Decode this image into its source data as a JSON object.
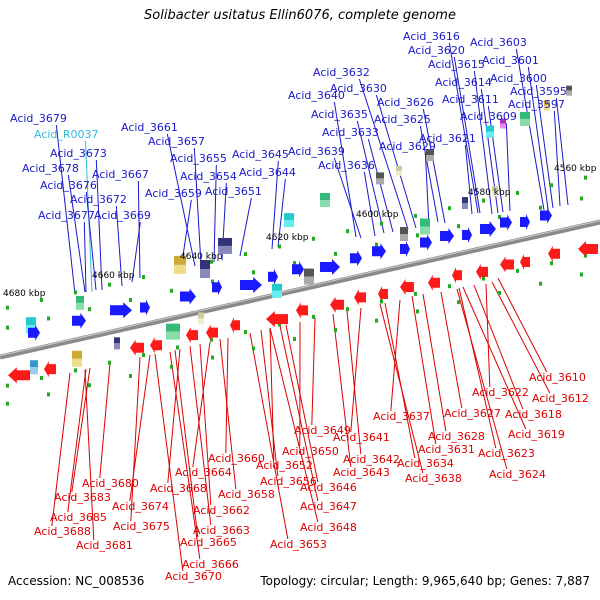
{
  "title": "Solibacter usitatus Ellin6076, complete genome",
  "footer": {
    "accession": "Accession: NC_008536",
    "summary": "Topology: circular; Length: 9,965,640 bp; Genes: 7,887"
  },
  "scale_labels": [
    "4560 kbp",
    "4580 kbp",
    "4600 kbp",
    "4620 kbp",
    "4640 kbp",
    "4660 kbp",
    "4680 kbp"
  ],
  "forward_labels": [
    "Acid_3616",
    "Acid_3603",
    "Acid_3620",
    "Acid_3601",
    "Acid_3615",
    "Acid_3600",
    "Acid_3614",
    "Acid_3595",
    "Acid_3611",
    "Acid_3597",
    "Acid_3609",
    "Acid_3632",
    "Acid_3630",
    "Acid_3640",
    "Acid_3626",
    "Acid_3635",
    "Acid_3625",
    "Acid_3633",
    "Acid_3629",
    "Acid_3621",
    "Acid_3639",
    "Acid_3636",
    "Acid_3645",
    "Acid_3644",
    "Acid_3661",
    "Acid_3657",
    "Acid_3655",
    "Acid_3654",
    "Acid_3651",
    "Acid_3659",
    "Acid_3679",
    "Acid_R0037",
    "Acid_3673",
    "Acid_3678",
    "Acid_3667",
    "Acid_3676",
    "Acid_3672",
    "Acid_3677",
    "Acid_3669"
  ],
  "reverse_labels": [
    "Acid_3610",
    "Acid_3622",
    "Acid_3612",
    "Acid_3618",
    "Acid_3619",
    "Acid_3627",
    "Acid_3637",
    "Acid_3628",
    "Acid_3631",
    "Acid_3623",
    "Acid_3641",
    "Acid_3649",
    "Acid_3624",
    "Acid_3634",
    "Acid_3642",
    "Acid_3650",
    "Acid_3660",
    "Acid_3643",
    "Acid_3638",
    "Acid_3664",
    "Acid_3652",
    "Acid_3646",
    "Acid_3668",
    "Acid_3656",
    "Acid_3658",
    "Acid_3680",
    "Acid_3647",
    "Acid_3662",
    "Acid_3683",
    "Acid_3674",
    "Acid_3648",
    "Acid_3685",
    "Acid_3663",
    "Acid_3675",
    "Acid_3688",
    "Acid_3665",
    "Acid_3653",
    "Acid_3681",
    "Acid_3666",
    "Acid_3670"
  ],
  "colors": {
    "forward_arrow": "#1a1aff",
    "reverse_arrow": "#ff1a1a",
    "forward_label": "#1a1acc",
    "reverse_label": "#dd0000",
    "rna_label": "#33bbdd",
    "backbone": "#777777",
    "tick": "#22aa22"
  }
}
